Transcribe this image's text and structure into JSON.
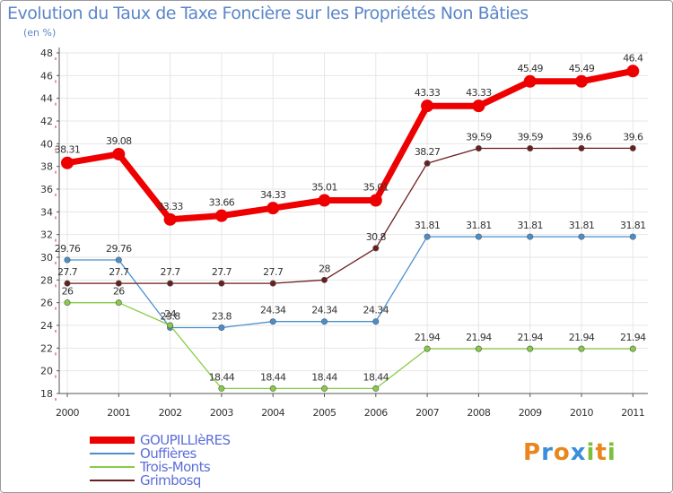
{
  "title": "Evolution du Taux de Taxe Foncière sur les Propriétés Non Bâties",
  "unit_label": "(en %)",
  "colors": {
    "text": "#333333",
    "title": "#5b86c9",
    "grid": "#e6e6e6",
    "axis": "#555555",
    "tick_mark": "#cc3333"
  },
  "logo": {
    "letters": [
      "P",
      "r",
      "o",
      "x",
      "i",
      "t",
      "i"
    ],
    "colors": [
      "#e8871e",
      "#3a8fd8",
      "#e8871e",
      "#3a8fd8",
      "#7bbf3a",
      "#e8871e",
      "#7bbf3a"
    ]
  },
  "chart_data": {
    "type": "line",
    "title": "Evolution du Taux de Taxe Foncière sur les Propriétés Non Bâties",
    "ylabel": "(en %)",
    "xlabel": "",
    "x": [
      "2000",
      "2001",
      "2002",
      "2003",
      "2004",
      "2005",
      "2006",
      "2007",
      "2008",
      "2009",
      "2010",
      "2011"
    ],
    "ylim": [
      18,
      48
    ],
    "yticks": [
      18,
      20,
      22,
      24,
      26,
      28,
      30,
      32,
      34,
      36,
      38,
      40,
      42,
      44,
      46,
      48
    ],
    "grid": true,
    "legend_position": "bottom-left",
    "series": [
      {
        "name": "GOUPILLIèRES",
        "color": "#ee0000",
        "weight": "bold",
        "values": [
          38.31,
          39.08,
          33.33,
          33.66,
          34.33,
          35.01,
          35.01,
          43.33,
          43.33,
          45.49,
          45.49,
          46.4
        ],
        "labels": [
          "38.31",
          "39.08",
          "33.33",
          "33.66",
          "34.33",
          "35.01",
          "35.01",
          "43.33",
          "43.33",
          "45.49",
          "45.49",
          "46.4"
        ]
      },
      {
        "name": "Ouffières",
        "color": "#4a8fcc",
        "weight": "thin",
        "values": [
          29.76,
          29.76,
          23.8,
          23.8,
          24.34,
          24.34,
          24.34,
          31.81,
          31.81,
          31.81,
          31.81,
          31.81
        ],
        "labels": [
          "29.76",
          "29.76",
          "23.8",
          "23.8",
          "24.34",
          "24.34",
          "24.34",
          "31.81",
          "31.81",
          "31.81",
          "31.81",
          "31.81"
        ]
      },
      {
        "name": "Trois-Monts",
        "color": "#88cc44",
        "weight": "thin",
        "values": [
          26,
          26,
          24,
          18.44,
          18.44,
          18.44,
          18.44,
          21.94,
          21.94,
          21.94,
          21.94,
          21.94
        ],
        "labels": [
          "26",
          "26",
          "24",
          "18.44",
          "18.44",
          "18.44",
          "18.44",
          "21.94",
          "21.94",
          "21.94",
          "21.94",
          "21.94"
        ]
      },
      {
        "name": "Grimbosq",
        "color": "#6b1e1e",
        "weight": "thin",
        "values": [
          27.7,
          27.7,
          27.7,
          27.7,
          27.7,
          28,
          30.8,
          38.27,
          39.59,
          39.59,
          39.6,
          39.6
        ],
        "labels": [
          "27.7",
          "27.7",
          "27.7",
          "27.7",
          "27.7",
          "28",
          "30.8",
          "38.27",
          "39.59",
          "39.59",
          "39.6",
          "39.6"
        ]
      }
    ]
  }
}
